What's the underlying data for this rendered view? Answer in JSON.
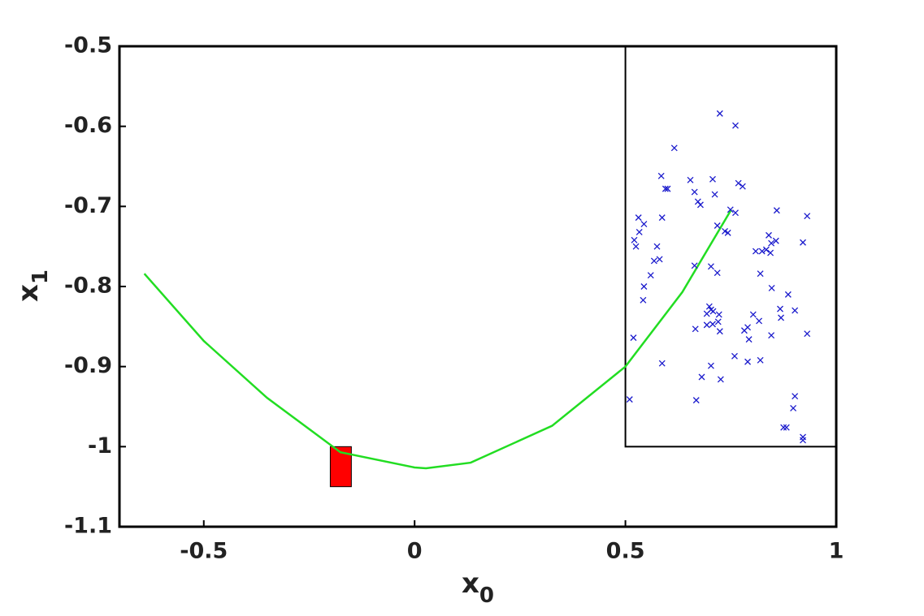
{
  "chart_data": {
    "type": "scatter",
    "xlabel": {
      "text": "x",
      "subscript": "0"
    },
    "ylabel": {
      "text": "x",
      "subscript": "1"
    },
    "xlim": [
      -0.7,
      1
    ],
    "ylim": [
      -1.1,
      -0.5
    ],
    "xticks": [
      -0.5,
      0,
      0.5,
      1
    ],
    "yticks": [
      -1.1,
      -1,
      -0.9,
      -0.8,
      -0.7,
      -0.6,
      -0.5
    ],
    "grid": false,
    "boxes": [
      {
        "x": [
          0.5,
          1
        ],
        "y": [
          -1,
          -0.5
        ],
        "edge": "#000000"
      },
      {
        "x": [
          -0.2,
          -0.15
        ],
        "y": [
          -1.05,
          -1
        ],
        "fill": "#ff0000",
        "edge": "#000000"
      }
    ],
    "curve": {
      "color": "#22dd22",
      "x": [
        -0.641,
        -0.5,
        -0.35,
        -0.176,
        0,
        0.027,
        0.133,
        0.326,
        0.5,
        0.635,
        0.751
      ],
      "y": [
        -0.784,
        -0.868,
        -0.939,
        -1.007,
        -1.026,
        -1.027,
        -1.02,
        -0.974,
        -0.9,
        -0.807,
        -0.704
      ]
    },
    "points": {
      "color": "#1a1acc",
      "x": [
        0.724,
        0.761,
        0.616,
        0.585,
        0.654,
        0.707,
        0.595,
        0.6,
        0.664,
        0.712,
        0.768,
        0.778,
        0.672,
        0.678,
        0.531,
        0.587,
        0.859,
        0.931,
        0.718,
        0.749,
        0.761,
        0.743,
        0.736,
        0.544,
        0.533,
        0.521,
        0.525,
        0.575,
        0.857,
        0.809,
        0.824,
        0.834,
        0.844,
        0.846,
        0.84,
        0.921,
        0.581,
        0.568,
        0.664,
        0.703,
        0.56,
        0.82,
        0.718,
        0.544,
        0.847,
        0.542,
        0.886,
        0.902,
        0.867,
        0.699,
        0.703,
        0.708,
        0.693,
        0.722,
        0.803,
        0.869,
        0.817,
        0.693,
        0.707,
        0.72,
        0.666,
        0.724,
        0.782,
        0.79,
        0.846,
        0.519,
        0.931,
        0.793,
        0.587,
        0.759,
        0.703,
        0.79,
        0.82,
        0.681,
        0.726,
        0.902,
        0.668,
        0.51,
        0.898,
        0.875,
        0.882,
        0.921,
        0.921
      ],
      "y": [
        -0.584,
        -0.599,
        -0.627,
        -0.662,
        -0.667,
        -0.666,
        -0.678,
        -0.678,
        -0.682,
        -0.685,
        -0.671,
        -0.675,
        -0.694,
        -0.698,
        -0.714,
        -0.714,
        -0.705,
        -0.712,
        -0.724,
        -0.704,
        -0.708,
        -0.733,
        -0.731,
        -0.722,
        -0.732,
        -0.742,
        -0.75,
        -0.75,
        -0.743,
        -0.756,
        -0.756,
        -0.754,
        -0.758,
        -0.746,
        -0.736,
        -0.745,
        -0.766,
        -0.768,
        -0.774,
        -0.775,
        -0.786,
        -0.784,
        -0.783,
        -0.8,
        -0.802,
        -0.817,
        -0.81,
        -0.83,
        -0.828,
        -0.825,
        -0.829,
        -0.831,
        -0.834,
        -0.835,
        -0.835,
        -0.839,
        -0.843,
        -0.848,
        -0.847,
        -0.844,
        -0.853,
        -0.856,
        -0.855,
        -0.851,
        -0.861,
        -0.864,
        -0.859,
        -0.866,
        -0.896,
        -0.887,
        -0.899,
        -0.894,
        -0.892,
        -0.913,
        -0.916,
        -0.937,
        -0.942,
        -0.941,
        -0.952,
        -0.976,
        -0.976,
        -0.988,
        -0.992
      ]
    }
  }
}
